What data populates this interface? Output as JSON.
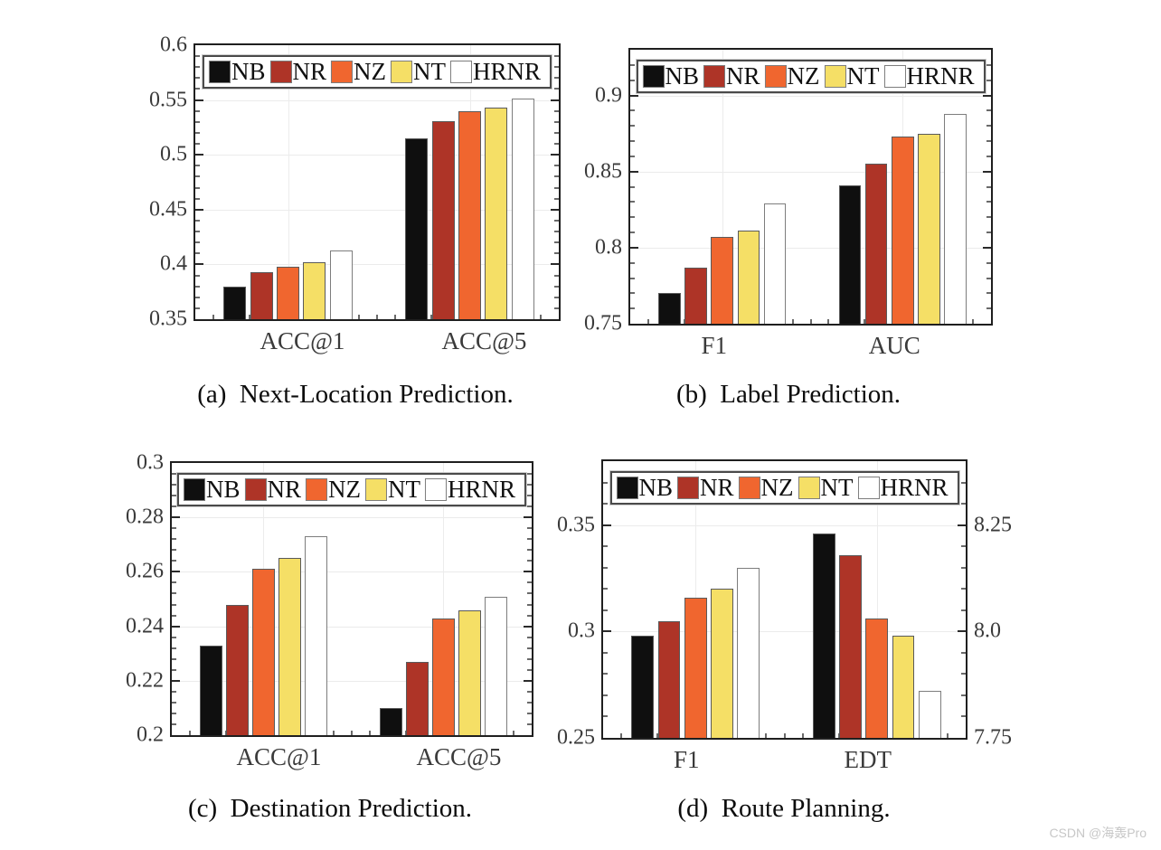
{
  "watermark": "CSDN @海轰Pro",
  "legend": {
    "position": "top-center",
    "items": [
      {
        "label": "NB",
        "color": "#0f0f0f"
      },
      {
        "label": "NR",
        "color": "#ae3427"
      },
      {
        "label": "NZ",
        "color": "#f0662f"
      },
      {
        "label": "NT",
        "color": "#f5df66"
      },
      {
        "label": "HRNR",
        "color": "#ffffff"
      }
    ]
  },
  "chart_data": [
    {
      "id": "a",
      "type": "bar",
      "caption": "(a)  Next-Location Prediction.",
      "categories": [
        "ACC@1",
        "ACC@5"
      ],
      "series": [
        {
          "name": "NB",
          "values": [
            0.38,
            0.515
          ]
        },
        {
          "name": "NR",
          "values": [
            0.393,
            0.531
          ]
        },
        {
          "name": "NZ",
          "values": [
            0.398,
            0.54
          ]
        },
        {
          "name": "NT",
          "values": [
            0.402,
            0.543
          ]
        },
        {
          "name": "HRNR",
          "values": [
            0.413,
            0.551
          ]
        }
      ],
      "left_axis": {
        "lim": [
          0.35,
          0.6
        ],
        "ticks": [
          0.35,
          0.4,
          0.45,
          0.5,
          0.55,
          0.6
        ],
        "labels": [
          "0.35",
          "0.4",
          "0.45",
          "0.5",
          "0.55",
          "0.6"
        ],
        "minor_step": 0.01
      },
      "grid": true
    },
    {
      "id": "b",
      "type": "bar",
      "caption": "(b)  Label Prediction.",
      "categories": [
        "F1",
        "AUC"
      ],
      "series": [
        {
          "name": "NB",
          "values": [
            0.77,
            0.841
          ]
        },
        {
          "name": "NR",
          "values": [
            0.787,
            0.855
          ]
        },
        {
          "name": "NZ",
          "values": [
            0.807,
            0.873
          ]
        },
        {
          "name": "NT",
          "values": [
            0.811,
            0.875
          ]
        },
        {
          "name": "HRNR",
          "values": [
            0.829,
            0.888
          ]
        }
      ],
      "left_axis": {
        "lim": [
          0.75,
          0.93
        ],
        "ticks": [
          0.75,
          0.8,
          0.85,
          0.9
        ],
        "labels": [
          "0.75",
          "0.8",
          "0.85",
          "0.9"
        ],
        "minor_step": 0.01
      },
      "grid": true
    },
    {
      "id": "c",
      "type": "bar",
      "caption": "(c)  Destination Prediction.",
      "categories": [
        "ACC@1",
        "ACC@5"
      ],
      "series": [
        {
          "name": "NB",
          "values": [
            0.233,
            0.21
          ]
        },
        {
          "name": "NR",
          "values": [
            0.248,
            0.227
          ]
        },
        {
          "name": "NZ",
          "values": [
            0.261,
            0.243
          ]
        },
        {
          "name": "NT",
          "values": [
            0.265,
            0.246
          ]
        },
        {
          "name": "HRNR",
          "values": [
            0.273,
            0.251
          ]
        }
      ],
      "left_axis": {
        "lim": [
          0.2,
          0.3
        ],
        "ticks": [
          0.2,
          0.22,
          0.24,
          0.26,
          0.28,
          0.3
        ],
        "labels": [
          "0.2",
          "0.22",
          "0.24",
          "0.26",
          "0.28",
          "0.3"
        ],
        "minor_step": 0.004
      },
      "grid": true
    },
    {
      "id": "d",
      "type": "bar",
      "caption": "(d)  Route Planning.",
      "categories": [
        "F1",
        "EDT"
      ],
      "group_axis": [
        "left",
        "right"
      ],
      "series": [
        {
          "name": "NB",
          "values": [
            0.298,
            8.23
          ]
        },
        {
          "name": "NR",
          "values": [
            0.305,
            8.18
          ]
        },
        {
          "name": "NZ",
          "values": [
            0.316,
            8.03
          ]
        },
        {
          "name": "NT",
          "values": [
            0.32,
            7.99
          ]
        },
        {
          "name": "HRNR",
          "values": [
            0.33,
            7.86
          ]
        }
      ],
      "left_axis": {
        "lim": [
          0.25,
          0.38
        ],
        "ticks": [
          0.25,
          0.3,
          0.35
        ],
        "labels": [
          "0.25",
          "0.3",
          "0.35"
        ],
        "minor_step": 0.01
      },
      "right_axis": {
        "lim": [
          7.75,
          8.4
        ],
        "ticks": [
          7.75,
          8.0,
          8.25
        ],
        "labels": [
          "7.75",
          "8.0",
          "8.25"
        ],
        "minor_step": 0.05
      },
      "grid": true
    }
  ]
}
